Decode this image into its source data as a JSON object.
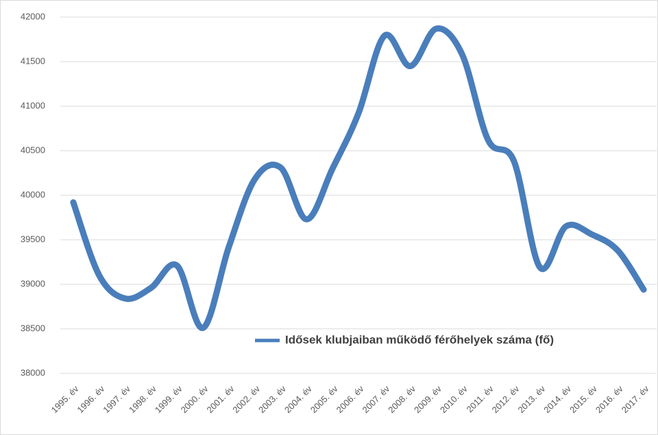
{
  "chart_data": {
    "type": "line",
    "smooth": true,
    "categories": [
      "1995. év",
      "1996. év",
      "1997. év",
      "1998. év",
      "1999. év",
      "2000. év",
      "2001. év",
      "2002. év",
      "2003. év",
      "2004. év",
      "2005. év",
      "2006. év",
      "2007. év",
      "2008. év",
      "2009. év",
      "2010. év",
      "2011. év",
      "2012. év",
      "2013. év",
      "2014. év",
      "2015. év",
      "2016. év",
      "2017. év"
    ],
    "series": [
      {
        "name": "Idősek klubjaiban működő férőhelyek száma (fő)",
        "color": "#4a7ebb",
        "values": [
          39920,
          39100,
          38840,
          38960,
          39210,
          38510,
          39420,
          40180,
          40310,
          39730,
          40300,
          40920,
          41790,
          41450,
          41870,
          41580,
          40620,
          40380,
          39190,
          39650,
          39560,
          39380,
          38940
        ]
      }
    ],
    "ylim": [
      38000,
      42000
    ],
    "yticks": [
      38000,
      38500,
      39000,
      39500,
      40000,
      40500,
      41000,
      41500,
      42000
    ],
    "grid": true
  }
}
